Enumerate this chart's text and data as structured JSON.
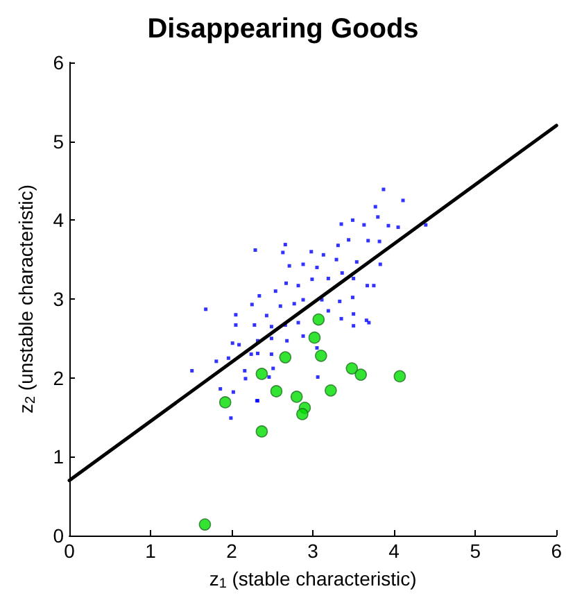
{
  "chart_data": {
    "type": "scatter",
    "title": "Disappearing Goods",
    "xlabel": "z$_{1}$ (stable characteristic)",
    "ylabel": "z$_{2}$ (unstable characteristic)",
    "xlim": [
      0,
      6
    ],
    "ylim": [
      0,
      6
    ],
    "xticks": [
      0,
      1,
      2,
      3,
      4,
      5,
      6
    ],
    "yticks": [
      0,
      1,
      2,
      3,
      4,
      5,
      6
    ],
    "grid": false,
    "series": [
      {
        "type": "scatter",
        "color": "#0000ff",
        "marker": "square",
        "x": [
          3.87,
          4.11,
          3.77,
          3.35,
          3.49,
          3.63,
          3.8,
          3.93,
          4.05,
          4.39,
          2.29,
          2.66,
          2.63,
          3.44,
          3.31,
          3.68,
          3.82,
          3.83,
          3.54,
          3.29,
          3.13,
          2.98,
          2.88,
          3.05,
          2.71,
          2.54,
          2.67,
          2.82,
          2.99,
          3.19,
          3.36,
          3.5,
          3.67,
          3.75,
          2.34,
          2.25,
          1.68,
          2.05,
          2.43,
          2.6,
          2.77,
          2.88,
          3.11,
          3.33,
          3.49,
          3.5,
          3.66,
          3.69,
          3.5,
          3.35,
          3.19,
          2.82,
          2.66,
          2.49,
          2.28,
          2.05,
          2.01,
          2.09,
          2.32,
          2.49,
          2.68,
          2.88,
          3.05,
          2.32,
          2.49,
          2.24,
          1.96,
          1.81,
          1.51,
          2.16,
          2.51,
          2.46,
          2.17,
          1.86,
          2.02,
          3.06,
          2.32,
          1.99,
          2.31
        ],
        "values": [
          4.39,
          4.25,
          4.17,
          3.95,
          4.0,
          3.94,
          4.04,
          3.93,
          3.91,
          3.94,
          3.62,
          3.69,
          3.59,
          3.75,
          3.68,
          3.74,
          3.73,
          3.44,
          3.47,
          3.5,
          3.56,
          3.6,
          3.44,
          3.4,
          3.42,
          3.1,
          3.2,
          3.17,
          3.25,
          3.26,
          3.33,
          3.26,
          3.17,
          3.17,
          3.04,
          2.93,
          2.87,
          2.8,
          2.79,
          2.91,
          2.94,
          2.99,
          2.99,
          2.97,
          3.02,
          2.81,
          2.73,
          2.7,
          2.66,
          2.75,
          2.85,
          2.7,
          2.67,
          2.65,
          2.67,
          2.67,
          2.44,
          2.42,
          2.47,
          2.5,
          2.47,
          2.53,
          2.38,
          2.31,
          2.3,
          2.3,
          2.25,
          2.21,
          2.09,
          2.09,
          2.12,
          2.01,
          1.99,
          1.86,
          1.82,
          2.01,
          1.71,
          1.49,
          1.71
        ]
      },
      {
        "type": "scatter",
        "color": "#00dd00",
        "marker": "circle",
        "x": [
          1.67,
          1.92,
          2.37,
          2.37,
          2.55,
          2.66,
          2.8,
          2.9,
          2.87,
          3.02,
          3.1,
          3.22,
          3.48,
          3.59,
          4.07,
          3.07
        ],
        "values": [
          0.14,
          1.69,
          1.32,
          2.05,
          1.83,
          2.26,
          1.76,
          1.62,
          1.54,
          2.51,
          2.28,
          1.84,
          2.12,
          2.04,
          2.02,
          2.74
        ]
      },
      {
        "type": "line",
        "color": "#000000",
        "marker": "none",
        "line_style": "solid",
        "x": [
          0,
          6
        ],
        "values": [
          0.7,
          5.2
        ]
      }
    ]
  }
}
